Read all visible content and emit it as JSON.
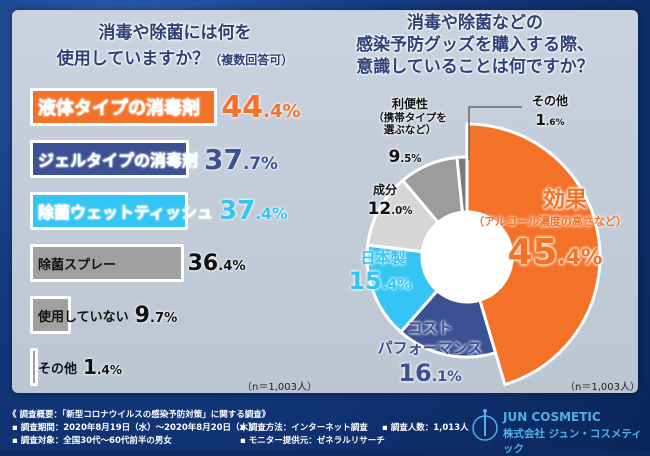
{
  "colors": {
    "orange": "#f47228",
    "navy": "#3b5193",
    "cyan": "#35c5f5",
    "gray": "#a0a0a0",
    "lightgray": "#d6d6d6",
    "midgray": "#9c9c9c",
    "darkgray": "#7a7a7a"
  },
  "left_chart": {
    "title_line1": "消毒や除菌には何を",
    "title_line2": "使用していますか？",
    "title_note": "（複数回答可）",
    "n_label": "（n＝1,003人）"
  },
  "right_chart": {
    "title_line1": "消毒や除菌などの",
    "title_line2": "感染予防グッズを購入する際、",
    "title_line3": "意識していることは何ですか？",
    "n_label": "（n＝1,003人）",
    "effect_sub": "（アルコール濃度の高さなど）",
    "convenience_sub1": "（携帯タイプを",
    "convenience_sub2": "選ぶなど）"
  },
  "chart_data": [
    {
      "type": "bar",
      "orientation": "horizontal",
      "title": "消毒や除菌には何を使用していますか？（複数回答可）",
      "categories": [
        "液体タイプの消毒剤",
        "ジェルタイプの消毒剤",
        "除菌ウェットティッシュ",
        "除菌スプレー",
        "使用していない",
        "その他"
      ],
      "values": [
        44.4,
        37.7,
        37.4,
        36.4,
        9.7,
        1.4
      ],
      "labels": [
        "44.4%",
        "37.7%",
        "37.4%",
        "36.4%",
        "9.7%",
        "1.4%"
      ],
      "bar_colors": [
        "#f47228",
        "#3b5193",
        "#35c5f5",
        "#a0a0a0",
        "#a0a0a0",
        "#a0a0a0"
      ],
      "label_colors": [
        "#ffffff",
        "#ffffff",
        "#ffffff",
        "#111111",
        "#111111",
        "#111111"
      ],
      "pct_colors": [
        "#f47228",
        "#3b5193",
        "#35c5f5",
        "#111111",
        "#111111",
        "#111111"
      ]
    },
    {
      "type": "pie",
      "donut": true,
      "title": "消毒や除菌などの感染予防グッズを購入する際、意識していることは何ですか？",
      "categories": [
        "効果",
        "コストパフォーマンス",
        "日本製",
        "成分",
        "利便性",
        "その他"
      ],
      "values": [
        45.4,
        16.1,
        15.4,
        12.0,
        9.5,
        1.6
      ],
      "labels": [
        "45.4%",
        "16.1%",
        "15.4%",
        "12.0%",
        "9.5%",
        "1.6%"
      ],
      "colors": [
        "#f47228",
        "#3b5193",
        "#35c5f5",
        "#d6d6d6",
        "#9c9c9c",
        "#7a7a7a"
      ],
      "exploded": "効果"
    }
  ],
  "footer": {
    "summary": "《 調査概要：「新型コロナウイルスの感染予防対策」に関する調査》",
    "period": "▪ 調査期間：2020年8月19日（水）～2020年8月20日（木）",
    "method": "▪ 調査方法：インターネット調査",
    "count": "▪ 調査人数：1,013人",
    "target": "▪ 調査対象：全国30代～60代前半の男女",
    "provider": "▪ モニター提供元：ゼネラルリサーチ",
    "company_en": "JUN COSMETIC",
    "company_jp": "株式会社 ジュン・コスメティック"
  }
}
